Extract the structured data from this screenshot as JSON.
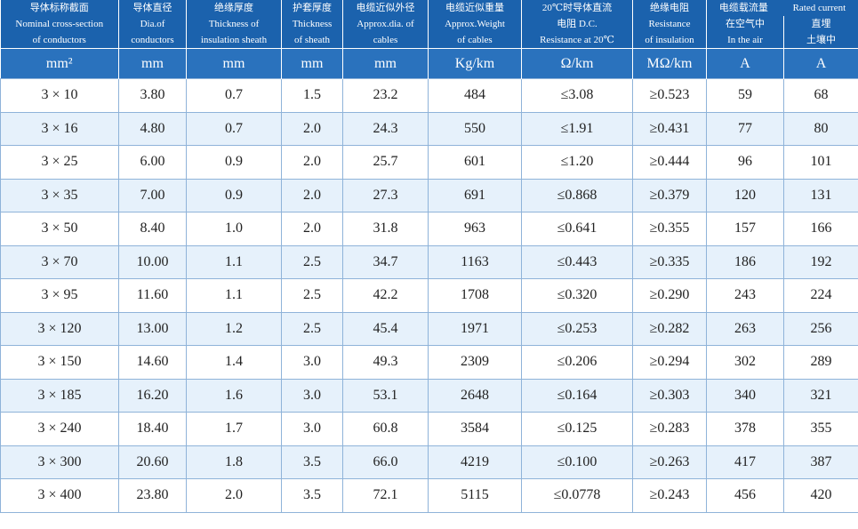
{
  "table": {
    "headers": [
      {
        "lines": [
          "导体标称截面",
          "Nominal cross-section",
          "of conductors"
        ]
      },
      {
        "lines": [
          "导体直径",
          "Dia.of",
          "conductors"
        ]
      },
      {
        "lines": [
          "绝缘厚度",
          "Thickness of",
          "insulation sheath"
        ]
      },
      {
        "lines": [
          "护套厚度",
          "Thickness",
          "of sheath"
        ]
      },
      {
        "lines": [
          "电缆近似外径",
          "Approx.dia. of",
          "cables"
        ]
      },
      {
        "lines": [
          "电缆近似重量",
          "Approx.Weight",
          "of cables"
        ]
      },
      {
        "lines": [
          "20℃时导体直流",
          "电阻 D.C.",
          "Resistance at 20℃"
        ]
      },
      {
        "lines": [
          "绝缘电阻",
          "Resistance",
          "of insulation"
        ]
      }
    ],
    "group": {
      "label": "电缆载流量",
      "label_en": "Rated current",
      "subs": [
        {
          "lines": [
            "在空气中",
            "In the air"
          ]
        },
        {
          "lines": [
            "直埋",
            "土壤中"
          ]
        }
      ]
    },
    "units": [
      "mm²",
      "mm",
      "mm",
      "mm",
      "mm",
      "Kg/km",
      "Ω/km",
      "MΩ/km",
      "A",
      "A"
    ],
    "rows": [
      [
        "3 × 10",
        "3.80",
        "0.7",
        "1.5",
        "23.2",
        "484",
        "≤3.08",
        "≥0.523",
        "59",
        "68"
      ],
      [
        "3 × 16",
        "4.80",
        "0.7",
        "2.0",
        "24.3",
        "550",
        "≤1.91",
        "≥0.431",
        "77",
        "80"
      ],
      [
        "3 × 25",
        "6.00",
        "0.9",
        "2.0",
        "25.7",
        "601",
        "≤1.20",
        "≥0.444",
        "96",
        "101"
      ],
      [
        "3 × 35",
        "7.00",
        "0.9",
        "2.0",
        "27.3",
        "691",
        "≤0.868",
        "≥0.379",
        "120",
        "131"
      ],
      [
        "3 × 50",
        "8.40",
        "1.0",
        "2.0",
        "31.8",
        "963",
        "≤0.641",
        "≥0.355",
        "157",
        "166"
      ],
      [
        "3 × 70",
        "10.00",
        "1.1",
        "2.5",
        "34.7",
        "1163",
        "≤0.443",
        "≥0.335",
        "186",
        "192"
      ],
      [
        "3 × 95",
        "11.60",
        "1.1",
        "2.5",
        "42.2",
        "1708",
        "≤0.320",
        "≥0.290",
        "243",
        "224"
      ],
      [
        "3 × 120",
        "13.00",
        "1.2",
        "2.5",
        "45.4",
        "1971",
        "≤0.253",
        "≥0.282",
        "263",
        "256"
      ],
      [
        "3 × 150",
        "14.60",
        "1.4",
        "3.0",
        "49.3",
        "2309",
        "≤0.206",
        "≥0.294",
        "302",
        "289"
      ],
      [
        "3 × 185",
        "16.20",
        "1.6",
        "3.0",
        "53.1",
        "2648",
        "≤0.164",
        "≥0.303",
        "340",
        "321"
      ],
      [
        "3 × 240",
        "18.40",
        "1.7",
        "3.0",
        "60.8",
        "3584",
        "≤0.125",
        "≥0.283",
        "378",
        "355"
      ],
      [
        "3 × 300",
        "20.60",
        "1.8",
        "3.5",
        "66.0",
        "4219",
        "≤0.100",
        "≥0.263",
        "417",
        "387"
      ],
      [
        "3 × 400",
        "23.80",
        "2.0",
        "3.5",
        "72.1",
        "5115",
        "≤0.0778",
        "≥0.243",
        "456",
        "420"
      ]
    ]
  }
}
